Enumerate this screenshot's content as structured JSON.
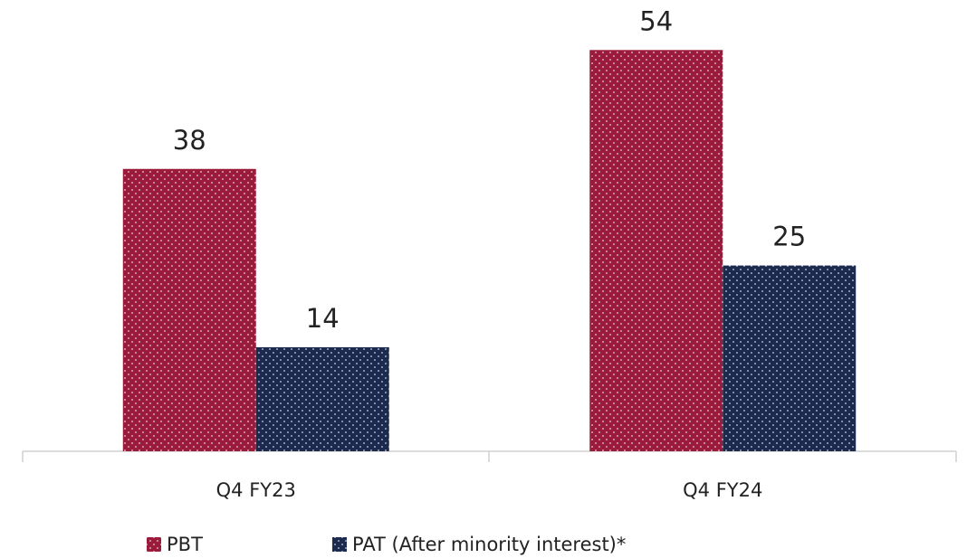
{
  "chart_data": {
    "type": "bar",
    "categories": [
      "Q4 FY23",
      "Q4 FY24"
    ],
    "series": [
      {
        "name": "PBT",
        "color": "#9b1b3c",
        "values": [
          38,
          54
        ]
      },
      {
        "name": "PAT (After minority interest)*",
        "color": "#1b2a4e",
        "values": [
          14,
          25
        ]
      }
    ],
    "ylim": [
      0,
      60
    ],
    "grid": false,
    "legend": "bottom"
  }
}
